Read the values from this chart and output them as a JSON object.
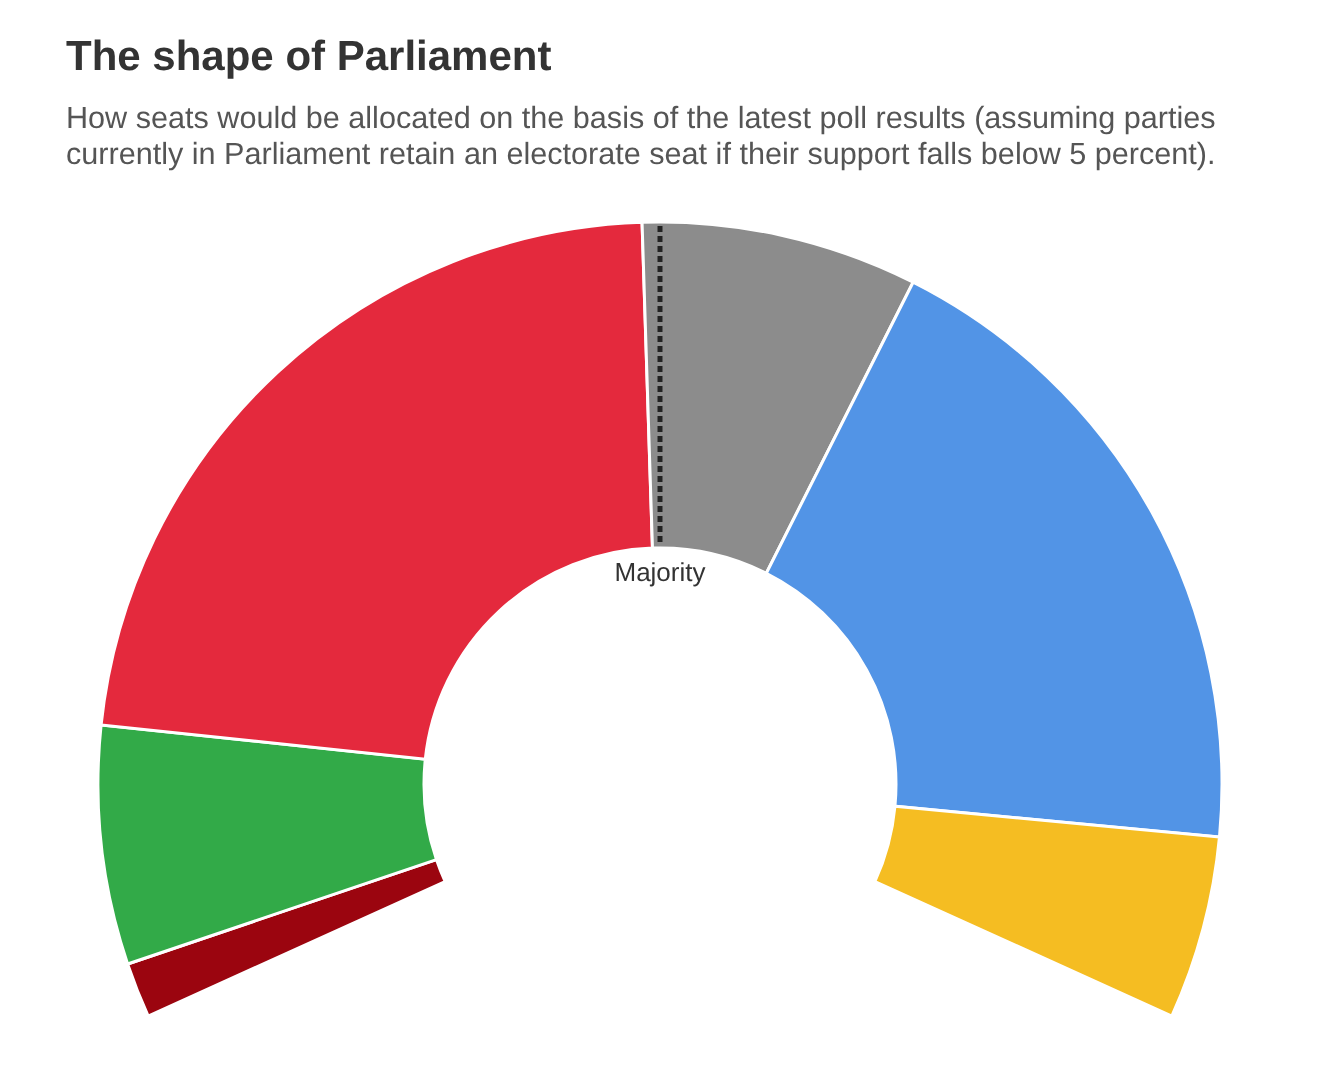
{
  "chart_data": {
    "type": "donut",
    "title": "The shape of Parliament",
    "subtitle": "How seats would be allocated on the basis of the latest poll results (assuming parties currently in Parliament retain an electorate seat if their support falls below 5 percent).",
    "categories": [
      null,
      null,
      null,
      null,
      null,
      null
    ],
    "values": [
      2.5,
      10.8,
      35.9,
      12.5,
      30,
      8.3
    ],
    "colors": [
      "#9b050f",
      "#32aa48",
      "#e4293d",
      "#8c8c8c",
      "#5294e6",
      "#f5bd22"
    ],
    "annotations": [
      "Majority"
    ]
  }
}
